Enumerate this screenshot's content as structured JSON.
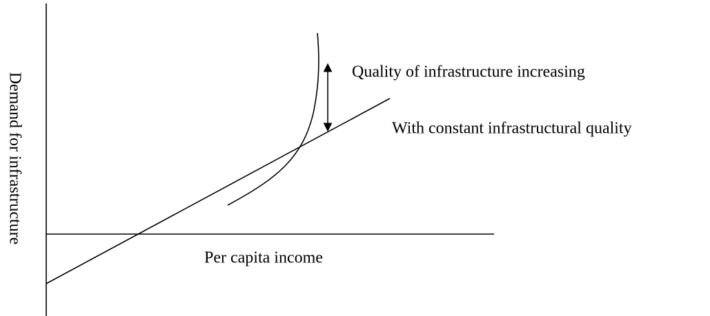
{
  "axes": {
    "y_label": "Demand for infrastructure",
    "x_label": "Per capita income"
  },
  "annotations": {
    "quality_increasing": "Quality of infrastructure increasing",
    "constant_quality": "With constant infrastructural quality"
  }
}
